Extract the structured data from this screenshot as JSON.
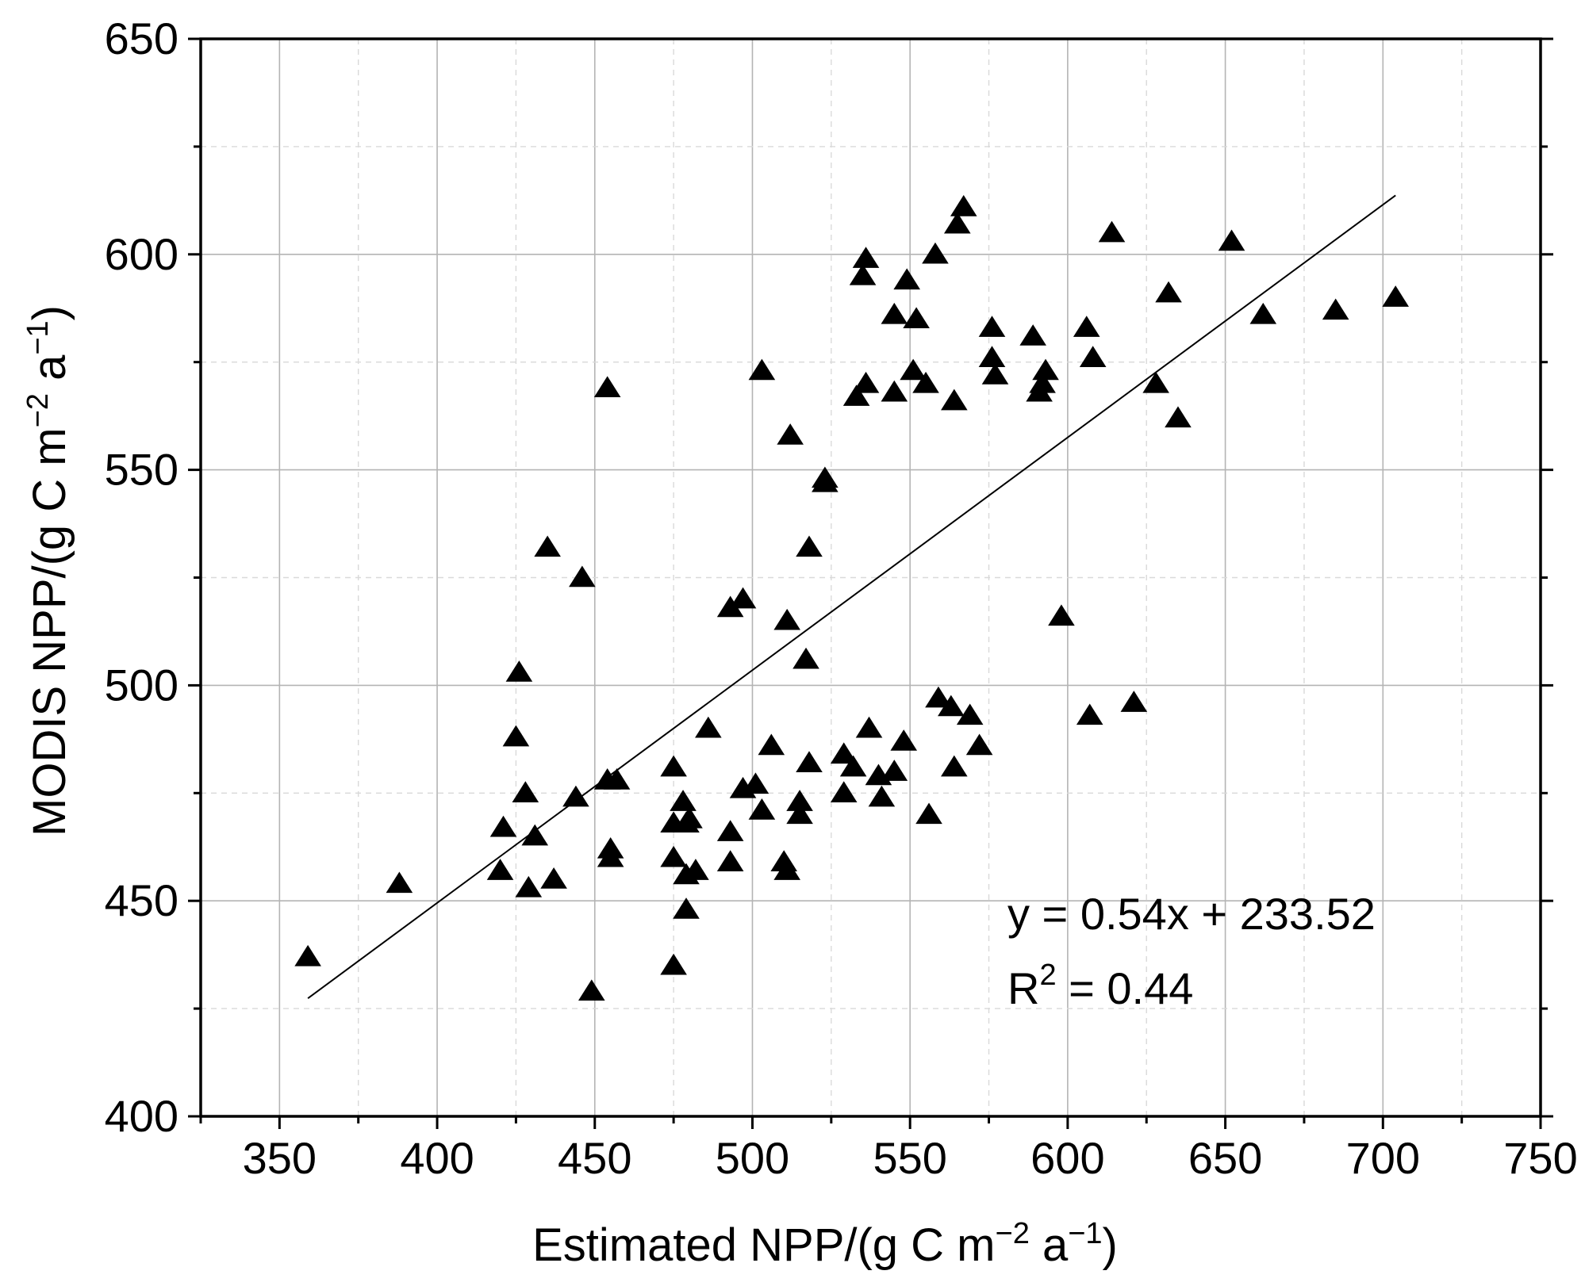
{
  "chart_data": {
    "type": "scatter",
    "title": "",
    "xlabel": "Estimated NPP/(g C m",
    "xlabel_exp": "−2",
    "xlabel_mid": " a",
    "xlabel_exp2": "−1",
    "xlabel_end": ")",
    "ylabel": "MODIS NPP/(g C m",
    "ylabel_exp": "−2",
    "ylabel_mid": " a",
    "ylabel_exp2": "−1",
    "ylabel_end": ")",
    "xlim": [
      325,
      750
    ],
    "ylim": [
      400,
      650
    ],
    "xticks": [
      "350",
      "400",
      "450",
      "500",
      "550",
      "600",
      "650",
      "700",
      "750"
    ],
    "yticks": [
      "400",
      "450",
      "500",
      "550",
      "600",
      "650"
    ],
    "grid": true,
    "marker": "triangle",
    "marker_color": "#000000",
    "equation": "y = 0.54x + 233.52",
    "r2_prefix": "R",
    "r2_exp": "2",
    "r2_value": " = 0.44",
    "fit": {
      "slope": 0.54,
      "intercept": 233.52,
      "x_range": [
        359,
        704
      ]
    },
    "points": [
      [
        359,
        437
      ],
      [
        388,
        454
      ],
      [
        420,
        457
      ],
      [
        421,
        467
      ],
      [
        425,
        488
      ],
      [
        426,
        503
      ],
      [
        428,
        475
      ],
      [
        429,
        453
      ],
      [
        431,
        465
      ],
      [
        435,
        532
      ],
      [
        437,
        455
      ],
      [
        444,
        474
      ],
      [
        446,
        525
      ],
      [
        449,
        429
      ],
      [
        454,
        569
      ],
      [
        454,
        478
      ],
      [
        455,
        462
      ],
      [
        455,
        460
      ],
      [
        457,
        478
      ],
      [
        475,
        481
      ],
      [
        475,
        468
      ],
      [
        475,
        460
      ],
      [
        475,
        435
      ],
      [
        478,
        473
      ],
      [
        479,
        468
      ],
      [
        479,
        456
      ],
      [
        479,
        448
      ],
      [
        480,
        469
      ],
      [
        482,
        457
      ],
      [
        486,
        490
      ],
      [
        493,
        518
      ],
      [
        493,
        466
      ],
      [
        493,
        459
      ],
      [
        497,
        476
      ],
      [
        497,
        520
      ],
      [
        501,
        477
      ],
      [
        503,
        573
      ],
      [
        503,
        471
      ],
      [
        506,
        486
      ],
      [
        510,
        459
      ],
      [
        511,
        515
      ],
      [
        511,
        457
      ],
      [
        512,
        558
      ],
      [
        515,
        473
      ],
      [
        515,
        470
      ],
      [
        517,
        506
      ],
      [
        518,
        482
      ],
      [
        518,
        532
      ],
      [
        523,
        548
      ],
      [
        523,
        547
      ],
      [
        529,
        484
      ],
      [
        529,
        475
      ],
      [
        532,
        481
      ],
      [
        533,
        567
      ],
      [
        535,
        595
      ],
      [
        536,
        599
      ],
      [
        536,
        570
      ],
      [
        537,
        490
      ],
      [
        540,
        479
      ],
      [
        541,
        474
      ],
      [
        545,
        480
      ],
      [
        545,
        568
      ],
      [
        545,
        586
      ],
      [
        548,
        487
      ],
      [
        549,
        594
      ],
      [
        551,
        573
      ],
      [
        552,
        585
      ],
      [
        555,
        570
      ],
      [
        556,
        470
      ],
      [
        558,
        600
      ],
      [
        559,
        497
      ],
      [
        563,
        495
      ],
      [
        564,
        566
      ],
      [
        564,
        481
      ],
      [
        565,
        607
      ],
      [
        567,
        611
      ],
      [
        569,
        493
      ],
      [
        572,
        486
      ],
      [
        576,
        583
      ],
      [
        576,
        576
      ],
      [
        577,
        572
      ],
      [
        589,
        581
      ],
      [
        591,
        568
      ],
      [
        592,
        570
      ],
      [
        593,
        573
      ],
      [
        598,
        516
      ],
      [
        606,
        583
      ],
      [
        607,
        493
      ],
      [
        608,
        576
      ],
      [
        614,
        605
      ],
      [
        621,
        496
      ],
      [
        628,
        570
      ],
      [
        632,
        591
      ],
      [
        635,
        562
      ],
      [
        652,
        603
      ],
      [
        662,
        586
      ],
      [
        685,
        587
      ],
      [
        704,
        590
      ]
    ]
  }
}
